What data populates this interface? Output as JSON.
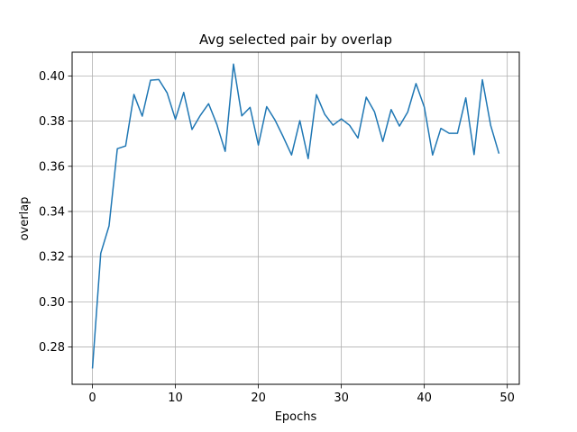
{
  "chart_data": {
    "type": "line",
    "title": "Avg selected pair by overlap",
    "xlabel": "Epochs",
    "ylabel": "overlap",
    "xlim": [
      -2.45,
      51.45
    ],
    "ylim": [
      0.2635,
      0.4105
    ],
    "grid": true,
    "xticks": [
      0,
      10,
      20,
      30,
      40,
      50
    ],
    "yticks": [
      0.28,
      0.3,
      0.32,
      0.34,
      0.36,
      0.38,
      0.4
    ],
    "ytick_labels": [
      "0.28",
      "0.30",
      "0.32",
      "0.34",
      "0.36",
      "0.38",
      "0.40"
    ],
    "line_color": "#1f77b4",
    "series": [
      {
        "x": [
          0,
          1,
          2,
          3,
          4,
          5,
          6,
          7,
          8,
          9,
          10,
          11,
          12,
          13,
          14,
          15,
          16,
          17,
          18,
          19,
          20,
          21,
          22,
          23,
          24,
          25,
          26,
          27,
          28,
          29,
          30,
          31,
          32,
          33,
          34,
          35,
          36,
          37,
          38,
          39,
          40,
          41,
          42,
          43,
          44,
          45,
          46,
          47,
          48,
          49
        ],
        "values": [
          0.2705,
          0.3215,
          0.3336,
          0.3678,
          0.369,
          0.3918,
          0.3822,
          0.3981,
          0.3984,
          0.3925,
          0.3808,
          0.3927,
          0.3763,
          0.3825,
          0.3877,
          0.3785,
          0.3666,
          0.4052,
          0.3823,
          0.3861,
          0.3694,
          0.3864,
          0.3805,
          0.373,
          0.365,
          0.3802,
          0.3634,
          0.3917,
          0.383,
          0.3782,
          0.381,
          0.3781,
          0.3725,
          0.3906,
          0.3841,
          0.371,
          0.3851,
          0.3778,
          0.384,
          0.3966,
          0.3862,
          0.365,
          0.3768,
          0.3746,
          0.3746,
          0.3903,
          0.3652,
          0.3983,
          0.3781,
          0.3656
        ]
      }
    ]
  }
}
